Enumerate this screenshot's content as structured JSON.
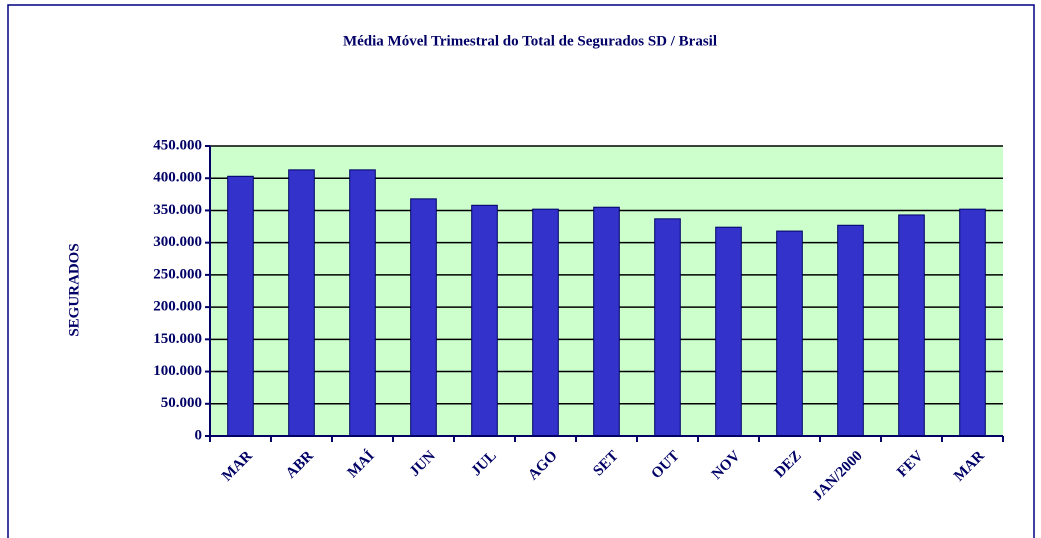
{
  "chart_data": {
    "type": "bar",
    "title": "Média Móvel Trimestral do Total de Segurados SD / Brasil",
    "y_label": "SEGURADOS",
    "categories": [
      "MAR",
      "ABR",
      "MAÍ",
      "JUN",
      "JUL",
      "AGO",
      "SET",
      "OUT",
      "NOV",
      "DEZ",
      "JAN/2000",
      "FEV",
      "MAR"
    ],
    "values": [
      403000,
      413000,
      413000,
      368000,
      358000,
      352000,
      355000,
      337000,
      324000,
      318000,
      327000,
      343000,
      352000
    ],
    "color": "#3333cc",
    "ylim": [
      0,
      450000
    ],
    "yticks": [
      0,
      {
        "value": 50000,
        "label": "50.000"
      },
      {
        "value": 100000,
        "label": "100.000"
      },
      {
        "value": 150000,
        "label": "150.000"
      },
      {
        "value": 200000,
        "label": "200.000"
      },
      {
        "value": 250000,
        "label": "250.000"
      },
      {
        "value": 300000,
        "label": "300.000"
      },
      {
        "value": 350000,
        "label": "350.000"
      },
      {
        "value": 400000,
        "label": "400.000"
      },
      {
        "value": 450000,
        "label": "450.000"
      }
    ],
    "grid": true
  }
}
